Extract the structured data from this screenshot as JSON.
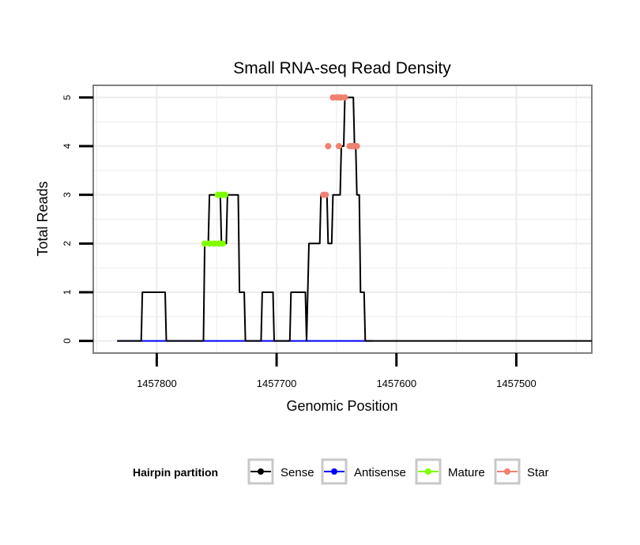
{
  "chart_data": {
    "type": "line",
    "title": "Small RNA-seq Read Density",
    "xlabel": "Genomic Position",
    "ylabel": "Total Reads",
    "xlim": [
      1457853,
      1457437
    ],
    "ylim": [
      -0.25,
      5.25
    ],
    "x_reversed": true,
    "xticks": [
      1457800,
      1457700,
      1457600,
      1457500
    ],
    "yticks": [
      0,
      1,
      2,
      3,
      4,
      5
    ],
    "grid": true,
    "legend": {
      "title": "Hairpin partition",
      "position": "bottom",
      "entries": [
        {
          "label": "Sense",
          "color": "#000000"
        },
        {
          "label": "Antisense",
          "color": "#0000ff"
        },
        {
          "label": "Mature",
          "color": "#7fff00"
        },
        {
          "label": "Star",
          "color": "#f08070"
        }
      ]
    },
    "series": [
      {
        "name": "Sense",
        "color": "#000000",
        "x": [
          1457833,
          1457813,
          1457812,
          1457793,
          1457792,
          1457761,
          1457760,
          1457757,
          1457756,
          1457747,
          1457746,
          1457742,
          1457741,
          1457732,
          1457731,
          1457727,
          1457726,
          1457713,
          1457712,
          1457703,
          1457702,
          1457689,
          1457688,
          1457676,
          1457675,
          1457674,
          1457673,
          1457664,
          1457663,
          1457658,
          1457657,
          1457654,
          1457653,
          1457647,
          1457646,
          1457644,
          1457643,
          1457636,
          1457635,
          1457634,
          1457633,
          1457631,
          1457630,
          1457627,
          1457626,
          1457625,
          1457624,
          1457619,
          1457618,
          1457437
        ],
        "y": [
          0,
          0,
          1,
          1,
          0,
          0,
          2,
          2,
          3,
          3,
          2,
          2,
          3,
          3,
          1,
          1,
          0,
          0,
          1,
          1,
          0,
          0,
          1,
          1,
          0,
          1,
          2,
          2,
          3,
          3,
          2,
          2,
          3,
          3,
          4,
          4,
          5,
          5,
          4,
          4,
          3,
          3,
          1,
          1,
          0,
          0,
          0,
          0,
          0,
          0
        ]
      },
      {
        "name": "Antisense",
        "color": "#0000ff",
        "x": [
          1457833,
          1457620
        ],
        "y": [
          0,
          0
        ]
      },
      {
        "name": "Mature",
        "color": "#7fff00",
        "x": [
          1457760,
          1457756,
          1457752,
          1457748,
          1457745,
          1457749,
          1457747,
          1457745,
          1457743
        ],
        "y": [
          2,
          2,
          2,
          2,
          2,
          3,
          3,
          3,
          3
        ]
      },
      {
        "name": "Star",
        "color": "#f08070",
        "x": [
          1457661,
          1457659,
          1457657,
          1457653,
          1457650,
          1457648,
          1457646,
          1457643,
          1457648,
          1457639,
          1457637,
          1457635,
          1457633
        ],
        "y": [
          3,
          3,
          4,
          5,
          5,
          5,
          5,
          5,
          4,
          4,
          4,
          4,
          4
        ]
      }
    ]
  }
}
